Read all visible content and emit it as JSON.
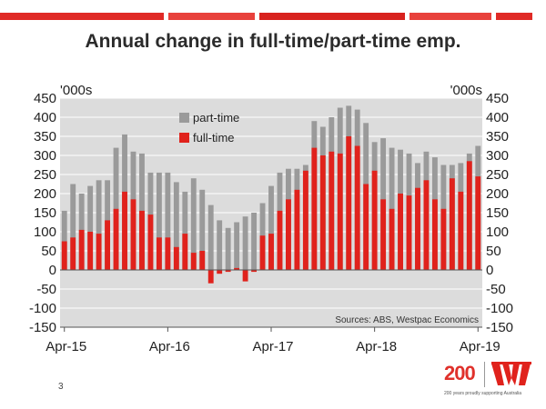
{
  "title": "Annual change in full-time/part-time  emp.",
  "page_number": "3",
  "brand": {
    "number": "200",
    "tagline": "200 years proudly supporting Australia"
  },
  "colors": {
    "stripe": "#e02a26",
    "full_time": "#e0221c",
    "part_time": "#9a9a9a",
    "plot_bg": "#dcdcdc"
  },
  "chart_data": {
    "type": "bar",
    "stacked": true,
    "left_unit": "'000s",
    "right_unit": "'000s",
    "ylim": [
      -150,
      450
    ],
    "yticks": [
      -150,
      -100,
      -50,
      0,
      50,
      100,
      150,
      200,
      250,
      300,
      350,
      400,
      450
    ],
    "grid": true,
    "legend": {
      "position": "top-left",
      "entries": [
        "part-time",
        "full-time"
      ]
    },
    "source_note": "Sources: ABS, Westpac Economics",
    "x_tick_labels": [
      "Apr-15",
      "Apr-16",
      "Apr-17",
      "Apr-18",
      "Apr-19"
    ],
    "x": [
      "Apr-15",
      "May-15",
      "Jun-15",
      "Jul-15",
      "Aug-15",
      "Sep-15",
      "Oct-15",
      "Nov-15",
      "Dec-15",
      "Jan-16",
      "Feb-16",
      "Mar-16",
      "Apr-16",
      "May-16",
      "Jun-16",
      "Jul-16",
      "Aug-16",
      "Sep-16",
      "Oct-16",
      "Nov-16",
      "Dec-16",
      "Jan-17",
      "Feb-17",
      "Mar-17",
      "Apr-17",
      "May-17",
      "Jun-17",
      "Jul-17",
      "Aug-17",
      "Sep-17",
      "Oct-17",
      "Nov-17",
      "Dec-17",
      "Jan-18",
      "Feb-18",
      "Mar-18",
      "Apr-18",
      "May-18",
      "Jun-18",
      "Jul-18",
      "Aug-18",
      "Sep-18",
      "Oct-18",
      "Nov-18",
      "Dec-18",
      "Jan-19",
      "Feb-19",
      "Mar-19",
      "Apr-19"
    ],
    "series": [
      {
        "name": "full-time",
        "values": [
          75,
          85,
          105,
          100,
          95,
          130,
          160,
          205,
          185,
          155,
          145,
          85,
          85,
          60,
          95,
          45,
          50,
          -35,
          -10,
          -5,
          5,
          -30,
          -5,
          90,
          95,
          155,
          185,
          210,
          260,
          320,
          300,
          310,
          305,
          350,
          325,
          225,
          260,
          185,
          160,
          200,
          195,
          215,
          235,
          185,
          160,
          240,
          205,
          285,
          245
        ]
      },
      {
        "name": "part-time",
        "values": [
          80,
          140,
          95,
          120,
          140,
          105,
          160,
          150,
          125,
          150,
          110,
          170,
          170,
          170,
          110,
          195,
          160,
          205,
          140,
          115,
          120,
          170,
          155,
          85,
          125,
          100,
          80,
          55,
          15,
          70,
          75,
          90,
          120,
          80,
          95,
          160,
          75,
          160,
          160,
          115,
          110,
          65,
          75,
          110,
          115,
          35,
          75,
          20,
          80
        ]
      }
    ]
  }
}
